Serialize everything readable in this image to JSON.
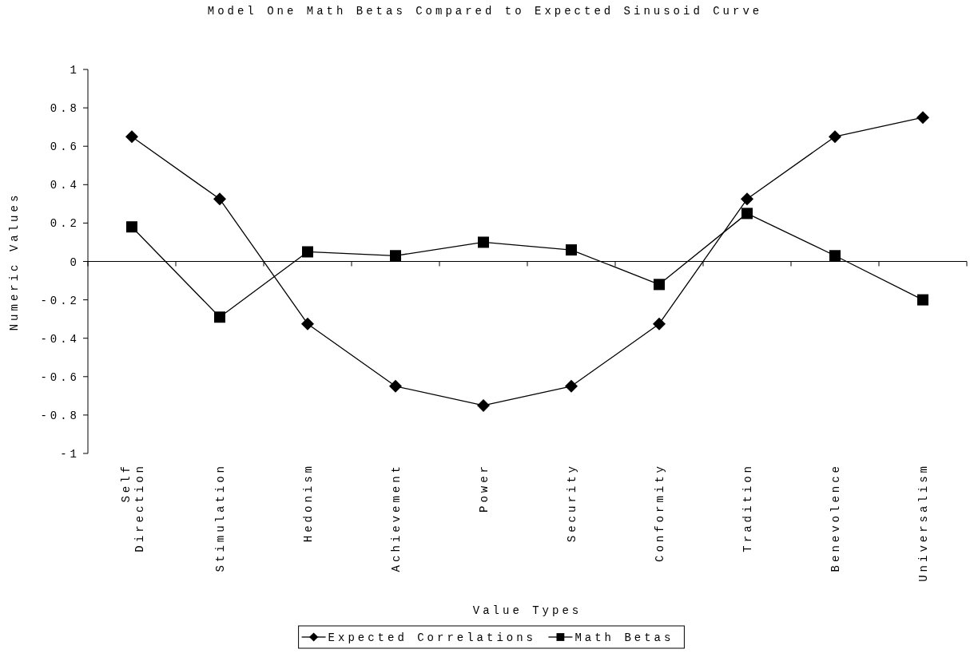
{
  "chart_data": {
    "type": "line",
    "title": "Model One Math Betas Compared to Expected Sinusoid Curve",
    "xlabel": "Value Types",
    "ylabel": "Numeric Values",
    "categories": [
      "Self Direction",
      "Stimulation",
      "Hedonism",
      "Achievement",
      "Power",
      "Security",
      "Conformity",
      "Tradition",
      "Benevolence",
      "Universalism"
    ],
    "series": [
      {
        "name": "Expected Correlations",
        "color": "#000000",
        "marker": "diamond",
        "values": [
          0.65,
          0.325,
          -0.325,
          -0.65,
          -0.75,
          -0.65,
          -0.325,
          0.325,
          0.65,
          0.75
        ]
      },
      {
        "name": "Math Betas",
        "color": "#000000",
        "marker": "square",
        "values": [
          0.18,
          -0.29,
          0.05,
          0.03,
          0.1,
          0.06,
          -0.12,
          0.25,
          0.03,
          -0.2
        ]
      }
    ],
    "ylim": [
      -1,
      1
    ],
    "yticks": [
      -1,
      -0.8,
      -0.6,
      -0.4,
      -0.2,
      0,
      0.2,
      0.4,
      0.6,
      0.8,
      1
    ],
    "legend": "bottom",
    "line_style": "solid"
  }
}
